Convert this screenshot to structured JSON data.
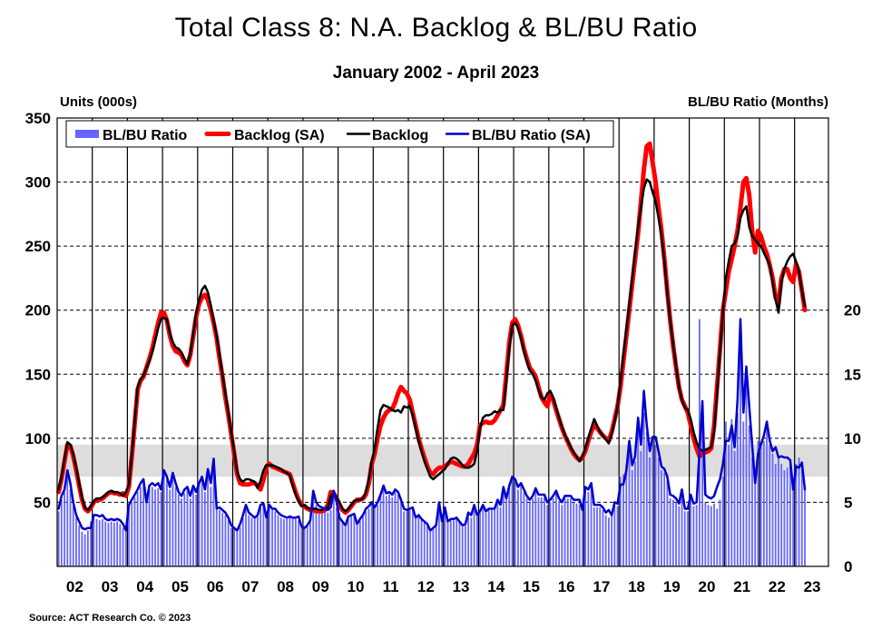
{
  "title": "Total Class 8: N.A. Backlog & BL/BU Ratio",
  "subtitle": "January 2002 - April 2023",
  "source": "Source: ACT Research Co. © 2023",
  "chart_data": {
    "type": "bar+line",
    "title": "Total Class 8: N.A. Backlog & BL/BU Ratio",
    "subtitle": "January 2002 - April 2023",
    "ylabel_left": "Units (000s)",
    "ylabel_right": "BL/BU Ratio (Months)",
    "ylim_left": [
      0,
      350
    ],
    "ylim_right": [
      0,
      35
    ],
    "yticks_left": [
      "350",
      "300",
      "250",
      "200",
      "150",
      "100",
      "50"
    ],
    "yticks_right": [
      "20",
      "15",
      "10",
      "5",
      "0"
    ],
    "xticks": [
      "02",
      "03",
      "04",
      "05",
      "06",
      "07",
      "08",
      "09",
      "10",
      "11",
      "12",
      "13",
      "14",
      "15",
      "16",
      "17",
      "18",
      "19",
      "20",
      "21",
      "22",
      "23"
    ],
    "x_start": "2002-01",
    "x_end": "2023-04",
    "frequency": "monthly",
    "grid": "horizontal dashed at each left tick, vertical solid at each year start",
    "legend_position": "top-left",
    "shaded_band_months": [
      7,
      9.5
    ],
    "colors": {
      "bars": "#6666ff",
      "backlog_sa": "#ff0000",
      "backlog": "#000000",
      "ratio_sa": "#0000cc",
      "band": "#dddddd"
    },
    "series": [
      {
        "name": "BL/BU Ratio",
        "type": "bar",
        "axis": "right",
        "values": [
          4.3,
          5.2,
          5.8,
          7.0,
          6.0,
          4.7,
          3.8,
          3.2,
          2.7,
          2.5,
          2.8,
          3.5,
          3.8,
          3.7,
          3.6,
          3.7,
          3.5,
          3.4,
          3.5,
          3.4,
          3.5,
          3.3,
          3.0,
          2.7,
          4.6,
          5.0,
          5.4,
          5.8,
          6.2,
          6.5,
          5.2,
          6.0,
          6.2,
          6.0,
          6.1,
          5.8,
          7.2,
          6.8,
          6.0,
          7.0,
          6.2,
          5.6,
          5.3,
          5.7,
          6.0,
          5.3,
          6.0,
          5.6,
          6.6,
          6.8,
          5.8,
          7.2,
          6.2,
          7.8,
          4.4,
          4.4,
          4.2,
          4.0,
          3.6,
          3.0,
          2.9,
          2.7,
          3.1,
          3.8,
          4.6,
          4.0,
          3.8,
          3.7,
          3.9,
          4.6,
          4.8,
          3.7,
          4.7,
          4.4,
          4.3,
          4.0,
          3.8,
          3.7,
          3.7,
          3.8,
          3.7,
          3.7,
          3.6,
          3.0,
          3.0,
          3.1,
          3.5,
          5.6,
          4.8,
          4.5,
          4.4,
          4.3,
          4.2,
          4.4,
          5.6,
          4.6,
          3.7,
          3.4,
          3.1,
          3.8,
          3.9,
          4.0,
          3.2,
          3.6,
          3.9,
          4.3,
          4.5,
          5.0,
          4.5,
          4.8,
          5.5,
          6.4,
          5.5,
          5.6,
          5.4,
          5.8,
          5.6,
          5.0,
          4.3,
          4.3,
          4.4,
          4.5,
          3.7,
          3.9,
          3.6,
          3.4,
          3.2,
          2.7,
          2.9,
          3.1,
          4.8,
          3.4,
          4.5,
          3.4,
          3.6,
          3.6,
          3.7,
          3.4,
          3.1,
          3.2,
          4.0,
          3.8,
          4.6,
          3.9,
          4.2,
          4.7,
          4.2,
          4.4,
          4.4,
          4.4,
          5.0,
          4.6,
          6.0,
          5.2,
          6.1,
          6.9,
          6.6,
          6.0,
          6.3,
          5.8,
          5.3,
          5.0,
          5.3,
          5.9,
          5.4,
          5.4,
          5.4,
          4.8,
          5.0,
          5.3,
          5.7,
          5.1,
          4.8,
          5.3,
          5.3,
          5.3,
          5.0,
          4.9,
          4.8,
          4.7,
          6.2,
          5.8,
          6.2,
          4.6,
          4.6,
          4.6,
          4.4,
          4.0,
          3.8,
          4.2,
          4.9,
          4.7,
          7.0,
          7.2,
          7.8,
          9.5,
          7.5,
          8.2,
          11.2,
          9.0,
          12.0,
          10.5,
          8.5,
          9.8,
          9.5,
          8.5,
          7.5,
          7.3,
          6.7,
          5.3,
          5.2,
          5.0,
          4.7,
          5.7,
          4.3,
          4.3,
          5.4,
          4.7,
          4.8,
          19.3,
          12.0,
          5.0,
          4.8,
          4.7,
          4.9,
          4.5,
          5.2,
          7.0,
          11.3,
          9.5,
          11.5,
          9.0,
          12.0,
          17.5,
          11.3,
          15.0,
          11.0,
          8.5,
          6.5,
          9.8,
          9.3,
          9.8,
          10.8,
          9.5,
          8.8,
          8.0,
          8.5,
          8.0,
          7.5,
          7.7,
          8.2,
          6.5,
          8.0,
          8.5,
          8.2,
          6.2
        ]
      },
      {
        "name": "Backlog (SA)",
        "type": "line",
        "axis": "left",
        "values": [
          58,
          68,
          82,
          95,
          94,
          86,
          75,
          63,
          52,
          45,
          43,
          46,
          50,
          52,
          52,
          53,
          55,
          57,
          58,
          57,
          57,
          56,
          57,
          55,
          62,
          85,
          112,
          138,
          145,
          148,
          155,
          162,
          170,
          180,
          190,
          198,
          198,
          192,
          180,
          172,
          168,
          167,
          165,
          160,
          157,
          165,
          180,
          195,
          205,
          210,
          212,
          208,
          200,
          190,
          178,
          162,
          148,
          132,
          118,
          103,
          88,
          72,
          65,
          64,
          64,
          64,
          65,
          65,
          63,
          60,
          68,
          78,
          80,
          78,
          77,
          76,
          75,
          74,
          73,
          72,
          65,
          58,
          52,
          48,
          47,
          45,
          44,
          44,
          43,
          43,
          43,
          44,
          48,
          58,
          57,
          53,
          48,
          44,
          42,
          44,
          47,
          50,
          52,
          52,
          53,
          56,
          65,
          80,
          88,
          100,
          110,
          116,
          120,
          122,
          123,
          128,
          135,
          140,
          137,
          135,
          130,
          120,
          110,
          100,
          92,
          85,
          78,
          73,
          72,
          75,
          77,
          77,
          78,
          80,
          82,
          81,
          80,
          79,
          78,
          78,
          80,
          84,
          88,
          95,
          110,
          112,
          113,
          112,
          112,
          114,
          118,
          122,
          126,
          150,
          175,
          190,
          193,
          188,
          180,
          170,
          162,
          155,
          152,
          148,
          140,
          132,
          128,
          125,
          135,
          130,
          122,
          115,
          108,
          102,
          97,
          92,
          88,
          85,
          83,
          85,
          90,
          98,
          105,
          110,
          108,
          105,
          102,
          100,
          98,
          105,
          115,
          125,
          140,
          160,
          180,
          200,
          220,
          240,
          260,
          285,
          310,
          328,
          330,
          315,
          300,
          280,
          262,
          240,
          215,
          192,
          172,
          155,
          140,
          130,
          125,
          120,
          110,
          100,
          92,
          86,
          88,
          89,
          90,
          92,
          110,
          140,
          170,
          200,
          215,
          230,
          240,
          250,
          262,
          280,
          300,
          303,
          290,
          262,
          245,
          262,
          258,
          250,
          244,
          235,
          225,
          210,
          205,
          225,
          232,
          232,
          225,
          222,
          236,
          230,
          215,
          200
        ]
      },
      {
        "name": "Backlog",
        "type": "line",
        "axis": "left",
        "values": [
          60,
          70,
          84,
          97,
          95,
          88,
          77,
          65,
          54,
          46,
          44,
          47,
          51,
          53,
          53,
          54,
          56,
          58,
          59,
          58,
          58,
          57,
          55,
          58,
          64,
          87,
          114,
          140,
          146,
          149,
          155,
          160,
          167,
          176,
          186,
          193,
          194,
          193,
          182,
          175,
          171,
          170,
          167,
          162,
          158,
          166,
          182,
          198,
          208,
          216,
          219,
          214,
          204,
          192,
          180,
          165,
          150,
          135,
          120,
          105,
          90,
          74,
          68,
          66,
          68,
          68,
          67,
          66,
          61,
          67,
          75,
          79,
          79,
          79,
          78,
          77,
          76,
          74,
          73,
          71,
          63,
          56,
          51,
          47,
          48,
          46,
          45,
          45,
          45,
          44,
          44,
          45,
          46,
          55,
          57,
          54,
          50,
          45,
          43,
          45,
          48,
          51,
          52,
          52,
          53,
          58,
          68,
          82,
          92,
          108,
          122,
          126,
          125,
          124,
          122,
          121,
          122,
          120,
          125,
          124,
          125,
          118,
          108,
          98,
          90,
          82,
          76,
          70,
          68,
          70,
          72,
          74,
          76,
          80,
          84,
          85,
          84,
          82,
          79,
          77,
          77,
          78,
          80,
          90,
          108,
          116,
          118,
          118,
          119,
          121,
          120,
          122,
          122,
          145,
          170,
          188,
          190,
          186,
          178,
          168,
          160,
          153,
          150,
          145,
          138,
          132,
          130,
          135,
          137,
          132,
          124,
          116,
          109,
          103,
          98,
          93,
          89,
          86,
          82,
          86,
          92,
          100,
          108,
          115,
          110,
          105,
          102,
          99,
          96,
          103,
          113,
          125,
          145,
          165,
          185,
          205,
          225,
          245,
          265,
          280,
          295,
          302,
          300,
          292,
          285,
          272,
          258,
          238,
          213,
          192,
          173,
          156,
          140,
          130,
          124,
          122,
          115,
          105,
          97,
          92,
          90,
          91,
          92,
          93,
          105,
          135,
          168,
          198,
          225,
          238,
          250,
          252,
          258,
          272,
          278,
          281,
          265,
          258,
          255,
          252,
          250,
          245,
          240,
          235,
          222,
          208,
          198,
          222,
          232,
          238,
          242,
          244,
          238,
          230,
          215,
          203
        ]
      },
      {
        "name": "BL/BU Ratio (SA)",
        "type": "line",
        "axis": "right",
        "values": [
          4.5,
          5.5,
          6.0,
          7.5,
          6.5,
          5.0,
          4.0,
          3.5,
          3.0,
          2.9,
          3.0,
          3.0,
          4.0,
          4.0,
          3.9,
          4.0,
          3.7,
          3.6,
          3.7,
          3.6,
          3.7,
          3.6,
          3.3,
          2.8,
          4.8,
          5.2,
          5.6,
          6.0,
          6.5,
          6.8,
          5.0,
          6.3,
          6.5,
          6.3,
          6.5,
          6.0,
          7.5,
          7.0,
          6.2,
          7.3,
          6.5,
          5.8,
          5.5,
          6.0,
          6.2,
          5.5,
          6.3,
          5.8,
          6.5,
          7.0,
          6.0,
          7.6,
          6.5,
          8.4,
          4.5,
          4.6,
          4.4,
          4.2,
          3.8,
          3.2,
          3.0,
          2.8,
          3.3,
          4.0,
          4.8,
          4.2,
          4.0,
          3.8,
          4.0,
          4.8,
          4.9,
          3.8,
          4.8,
          4.5,
          4.5,
          4.2,
          4.0,
          3.9,
          3.8,
          3.9,
          3.8,
          3.8,
          3.9,
          3.1,
          3.0,
          3.2,
          3.6,
          5.9,
          5.0,
          4.7,
          4.6,
          4.5,
          4.4,
          4.6,
          5.9,
          5.0,
          3.8,
          3.5,
          3.2,
          3.9,
          4.0,
          4.1,
          3.3,
          3.7,
          4.0,
          4.5,
          4.7,
          5.0,
          4.6,
          5.0,
          5.6,
          6.3,
          5.7,
          5.8,
          5.6,
          6.0,
          5.8,
          5.2,
          4.5,
          4.4,
          4.5,
          4.6,
          3.8,
          4.0,
          3.7,
          3.5,
          3.3,
          2.8,
          3.0,
          3.2,
          5.0,
          3.5,
          4.6,
          3.5,
          3.7,
          3.7,
          3.8,
          3.5,
          3.2,
          3.3,
          4.2,
          4.0,
          4.8,
          4.0,
          4.3,
          4.8,
          4.3,
          4.5,
          4.5,
          4.5,
          5.2,
          4.8,
          6.2,
          5.3,
          6.3,
          7.0,
          6.8,
          6.2,
          6.5,
          6.0,
          5.5,
          5.2,
          5.5,
          6.1,
          5.6,
          5.6,
          5.6,
          5.0,
          5.2,
          5.5,
          5.9,
          5.3,
          5.0,
          5.5,
          5.5,
          5.5,
          5.2,
          5.2,
          5.2,
          4.4,
          6.2,
          6.0,
          6.5,
          4.8,
          4.8,
          4.8,
          4.6,
          4.2,
          4.4,
          4.0,
          5.0,
          4.9,
          6.4,
          6.4,
          7.5,
          9.8,
          7.9,
          8.6,
          11.6,
          9.5,
          13.7,
          11.0,
          9.0,
          10.1,
          10.1,
          9.0,
          7.8,
          7.6,
          7.0,
          5.6,
          5.5,
          5.3,
          4.9,
          6.0,
          4.5,
          4.5,
          5.6,
          4.9,
          5.0,
          9.0,
          12.9,
          5.6,
          5.4,
          5.3,
          5.5,
          6.2,
          6.8,
          8.0,
          9.8,
          9.8,
          11.0,
          9.3,
          13.0,
          19.3,
          12.0,
          15.6,
          12.5,
          9.5,
          6.5,
          8.8,
          9.5,
          10.2,
          11.3,
          9.8,
          9.0,
          9.3,
          8.5,
          8.6,
          8.5,
          8.5,
          8.3,
          6.0,
          7.8,
          7.7,
          8.1,
          6.0
        ]
      }
    ]
  }
}
